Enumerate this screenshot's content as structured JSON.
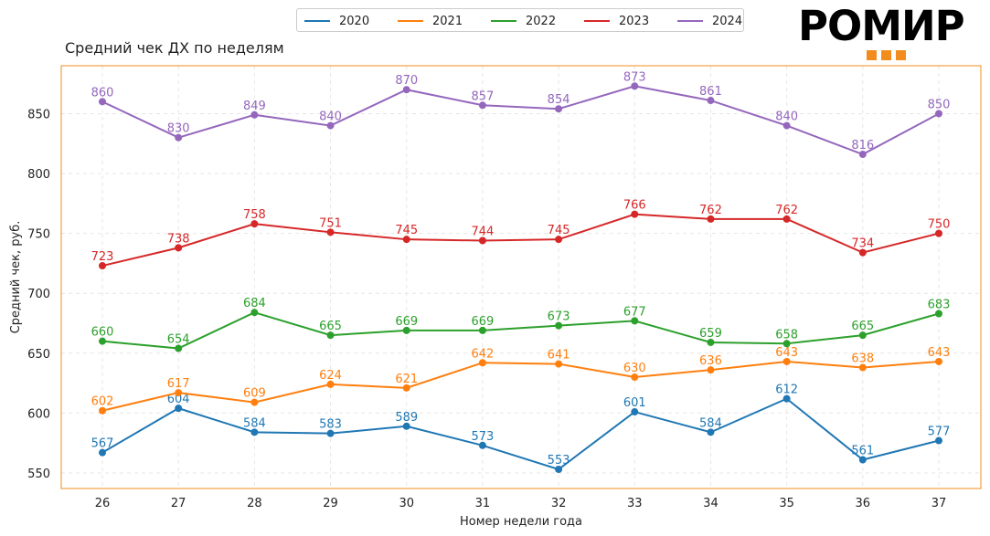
{
  "brand": {
    "logo_text": "РОМИР"
  },
  "chart_data": {
    "type": "line",
    "title": "Средний чек ДХ по неделям",
    "xlabel": "Номер недели года",
    "ylabel": "Средний чек, руб.",
    "categories": [
      26,
      27,
      28,
      29,
      30,
      31,
      32,
      33,
      34,
      35,
      36,
      37
    ],
    "ylim": [
      537,
      890
    ],
    "yticks": [
      550,
      600,
      650,
      700,
      750,
      800,
      850
    ],
    "grid": true,
    "legend_position": "top-center",
    "series": [
      {
        "name": "2020",
        "color": "#1f77b4",
        "values": [
          567,
          604,
          584,
          583,
          589,
          573,
          553,
          601,
          584,
          612,
          561,
          577
        ]
      },
      {
        "name": "2021",
        "color": "#ff7f0e",
        "values": [
          602,
          617,
          609,
          624,
          621,
          642,
          641,
          630,
          636,
          643,
          638,
          643
        ]
      },
      {
        "name": "2022",
        "color": "#2ca02c",
        "values": [
          660,
          654,
          684,
          665,
          669,
          669,
          673,
          677,
          659,
          658,
          665,
          683
        ]
      },
      {
        "name": "2023",
        "color": "#d62728",
        "values": [
          723,
          738,
          758,
          751,
          745,
          744,
          745,
          766,
          762,
          762,
          734,
          750
        ]
      },
      {
        "name": "2024",
        "color": "#9467bd",
        "values": [
          860,
          830,
          849,
          840,
          870,
          857,
          854,
          873,
          861,
          840,
          816,
          850
        ]
      }
    ]
  }
}
